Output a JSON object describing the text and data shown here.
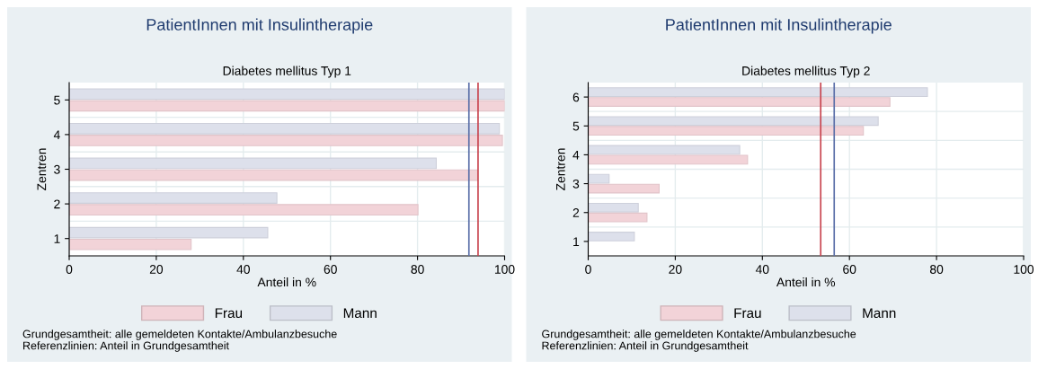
{
  "chart_data": [
    {
      "type": "bar",
      "orientation": "horizontal",
      "title": "PatientInnen mit Insulintherapie",
      "subtitle": "Diabetes mellitus Typ 1",
      "xlabel": "Anteil in %",
      "ylabel": "Zentren",
      "categories": [
        "5",
        "4",
        "3",
        "2",
        "1"
      ],
      "series": [
        {
          "name": "Mann",
          "color": "#dde0eb",
          "values": [
            100,
            98.8,
            84.3,
            47.7,
            45.6
          ]
        },
        {
          "name": "Frau",
          "color": "#f2d3d8",
          "values": [
            100,
            99.5,
            93.8,
            80.1,
            28.0
          ]
        }
      ],
      "xlim": [
        0,
        100
      ],
      "xticks": [
        0,
        20,
        40,
        60,
        80,
        100
      ],
      "ref_lines": [
        {
          "axis": "x",
          "value": 91.8,
          "color": "#5a6fa8"
        },
        {
          "axis": "x",
          "value": 93.9,
          "color": "#c8434e"
        }
      ],
      "grid": true,
      "legend": "bottom",
      "annotations": [
        "Grundgesamtheit: alle gemeldeten Kontakte/Ambulanzbesuche",
        "Referenzlinien: Anteil in Grundgesamtheit"
      ]
    },
    {
      "type": "bar",
      "orientation": "horizontal",
      "title": "PatientInnen mit Insulintherapie",
      "subtitle": "Diabetes mellitus Typ 2",
      "xlabel": "Anteil in %",
      "ylabel": "Zentren",
      "categories": [
        "6",
        "5",
        "4",
        "3",
        "2",
        "1"
      ],
      "series": [
        {
          "name": "Mann",
          "color": "#dde0eb",
          "values": [
            77.9,
            66.6,
            34.8,
            4.8,
            11.5,
            10.6
          ]
        },
        {
          "name": "Frau",
          "color": "#f2d3d8",
          "values": [
            69.3,
            63.2,
            36.6,
            16.3,
            13.5,
            null
          ]
        }
      ],
      "xlim": [
        0,
        100
      ],
      "xticks": [
        0,
        20,
        40,
        60,
        80,
        100
      ],
      "ref_lines": [
        {
          "axis": "x",
          "value": 53.4,
          "color": "#c8434e"
        },
        {
          "axis": "x",
          "value": 56.5,
          "color": "#5a6fa8"
        }
      ],
      "grid": true,
      "legend": "bottom",
      "annotations": [
        "Grundgesamtheit: alle gemeldeten Kontakte/Ambulanzbesuche",
        "Referenzlinien: Anteil in Grundgesamtheit"
      ]
    }
  ]
}
